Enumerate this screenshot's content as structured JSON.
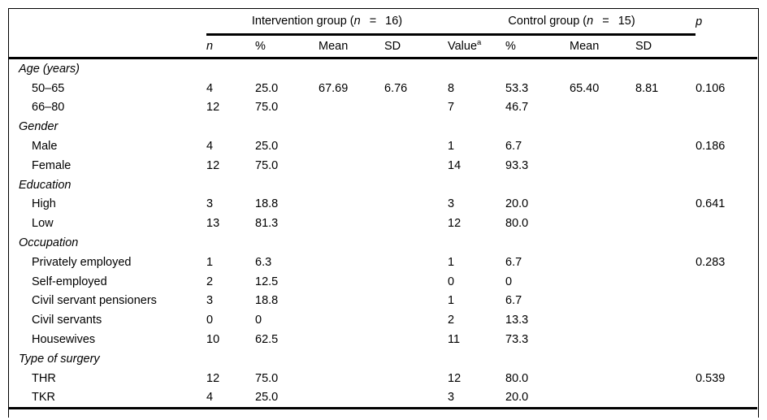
{
  "table": {
    "header": {
      "group1": {
        "pre": "Intervention group (",
        "var": "n",
        "eq": "=",
        "count": "16)"
      },
      "group2": {
        "pre": "Control group (",
        "var": "n",
        "eq": "=",
        "count": "15)"
      },
      "p_label": "p",
      "subheaders": {
        "n": "n",
        "pct1": "%",
        "mean1": "Mean",
        "sd1": "SD",
        "value_base": "Value",
        "value_sup": "a",
        "pct2": "%",
        "mean2": "Mean",
        "sd2": "SD"
      }
    },
    "column_keys": [
      "n",
      "pct1",
      "mean1",
      "sd1",
      "value",
      "pct2",
      "mean2",
      "sd2",
      "p"
    ],
    "rows": [
      {
        "type": "section",
        "label": "Age (years)",
        "cells": [
          "",
          "",
          "",
          "",
          "",
          "",
          "",
          "",
          ""
        ]
      },
      {
        "type": "item",
        "label": "50–65",
        "cells": [
          "4",
          "25.0",
          "67.69",
          "6.76",
          "8",
          "53.3",
          "65.40",
          "8.81",
          "0.106"
        ]
      },
      {
        "type": "item",
        "label": "66–80",
        "cells": [
          "12",
          "75.0",
          "",
          "",
          "7",
          "46.7",
          "",
          "",
          ""
        ]
      },
      {
        "type": "section",
        "label": "Gender",
        "cells": [
          "",
          "",
          "",
          "",
          "",
          "",
          "",
          "",
          ""
        ]
      },
      {
        "type": "item",
        "label": "Male",
        "cells": [
          "4",
          "25.0",
          "",
          "",
          "1",
          "6.7",
          "",
          "",
          "0.186"
        ]
      },
      {
        "type": "item",
        "label": "Female",
        "cells": [
          "12",
          "75.0",
          "",
          "",
          "14",
          "93.3",
          "",
          "",
          ""
        ]
      },
      {
        "type": "section",
        "label": "Education",
        "cells": [
          "",
          "",
          "",
          "",
          "",
          "",
          "",
          "",
          ""
        ]
      },
      {
        "type": "item",
        "label": "High",
        "cells": [
          "3",
          "18.8",
          "",
          "",
          "3",
          "20.0",
          "",
          "",
          "0.641"
        ]
      },
      {
        "type": "item",
        "label": "Low",
        "cells": [
          "13",
          "81.3",
          "",
          "",
          "12",
          "80.0",
          "",
          "",
          ""
        ]
      },
      {
        "type": "section",
        "label": "Occupation",
        "cells": [
          "",
          "",
          "",
          "",
          "",
          "",
          "",
          "",
          ""
        ]
      },
      {
        "type": "item",
        "label": "Privately employed",
        "cells": [
          "1",
          "6.3",
          "",
          "",
          "1",
          "6.7",
          "",
          "",
          "0.283"
        ]
      },
      {
        "type": "item",
        "label": "Self-employed",
        "cells": [
          "2",
          "12.5",
          "",
          "",
          "0",
          "0",
          "",
          "",
          ""
        ]
      },
      {
        "type": "item",
        "label": "Civil servant pensioners",
        "cells": [
          "3",
          "18.8",
          "",
          "",
          "1",
          "6.7",
          "",
          "",
          ""
        ]
      },
      {
        "type": "item",
        "label": "Civil servants",
        "cells": [
          "0",
          "0",
          "",
          "",
          "2",
          "13.3",
          "",
          "",
          ""
        ]
      },
      {
        "type": "item",
        "label": "Housewives",
        "cells": [
          "10",
          "62.5",
          "",
          "",
          "11",
          "73.3",
          "",
          "",
          ""
        ]
      },
      {
        "type": "section",
        "label": "Type of surgery",
        "cells": [
          "",
          "",
          "",
          "",
          "",
          "",
          "",
          "",
          ""
        ]
      },
      {
        "type": "item",
        "label": "THR",
        "cells": [
          "12",
          "75.0",
          "",
          "",
          "12",
          "80.0",
          "",
          "",
          "0.539"
        ]
      },
      {
        "type": "item",
        "label": "TKR",
        "cells": [
          "4",
          "25.0",
          "",
          "",
          "3",
          "20.0",
          "",
          "",
          ""
        ]
      }
    ]
  }
}
